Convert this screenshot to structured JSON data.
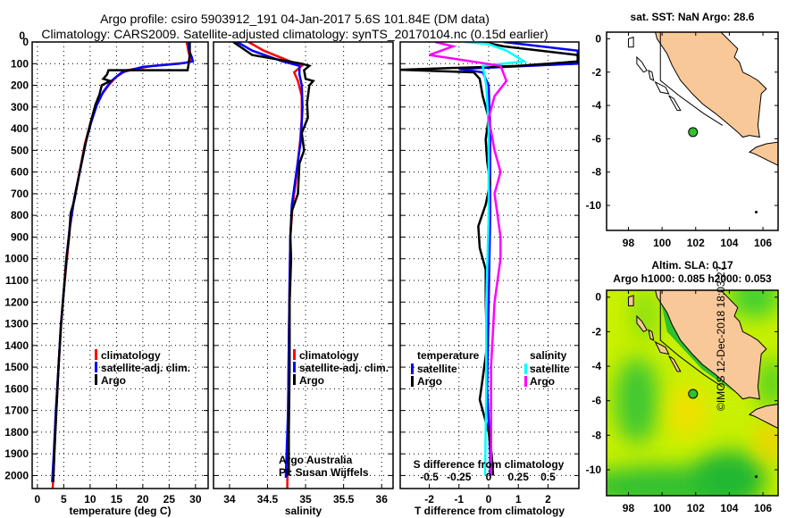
{
  "header": {
    "title_line1": "Argo profile: csiro 5903912_191 04-Jan-2017 5.6S 101.84E (DM data)",
    "title_line2": "Climatology: CARS2009. Satellite-adjusted climatology: synTS_20170104.nc (0.15d earlier)"
  },
  "colors": {
    "climatology": "#ff0000",
    "satellite": "#0000ff",
    "argo": "#000000",
    "sal_satellite": "#00ffff",
    "sal_argo": "#ff00ff",
    "land": "#f8c898"
  },
  "chart_data": [
    {
      "type": "line",
      "name": "temperature-profile",
      "xlabel": "temperature (deg C)",
      "ylabel": "",
      "xlim": [
        -1,
        32.4
      ],
      "ylim": [
        2060,
        0
      ],
      "xticks": [
        0,
        5,
        10,
        15,
        20,
        25,
        30
      ],
      "yticks": [
        0,
        100,
        200,
        300,
        400,
        500,
        600,
        700,
        800,
        900,
        1000,
        1100,
        1200,
        1300,
        1400,
        1500,
        1600,
        1700,
        1800,
        1900,
        2000
      ],
      "legend": [
        "climatology",
        "satellite-adj. clim.",
        "Argo"
      ],
      "legend_placement": "lower-right",
      "series": [
        {
          "name": "climatology",
          "color": "#ff0000",
          "points": [
            [
              28.3,
              0
            ],
            [
              28.5,
              20
            ],
            [
              28.7,
              50
            ],
            [
              29.1,
              80
            ],
            [
              28.5,
              95
            ],
            [
              22,
              110
            ],
            [
              17,
              130
            ],
            [
              15,
              160
            ],
            [
              13.5,
              200
            ],
            [
              12,
              250
            ],
            [
              11,
              300
            ],
            [
              10,
              380
            ],
            [
              9,
              470
            ],
            [
              8,
              600
            ],
            [
              7,
              720
            ],
            [
              6.2,
              850
            ],
            [
              5.6,
              1000
            ],
            [
              5,
              1150
            ],
            [
              4.5,
              1300
            ],
            [
              4,
              1500
            ],
            [
              3.6,
              1700
            ],
            [
              3.2,
              1900
            ],
            [
              2.9,
              2060
            ]
          ]
        },
        {
          "name": "satellite-adj. clim.",
          "color": "#0000ff",
          "points": [
            [
              28.6,
              0
            ],
            [
              28.8,
              40
            ],
            [
              29.3,
              70
            ],
            [
              29.5,
              90
            ],
            [
              27,
              100
            ],
            [
              20,
              115
            ],
            [
              16,
              140
            ],
            [
              14,
              180
            ],
            [
              12.5,
              230
            ],
            [
              11.3,
              290
            ],
            [
              10.2,
              370
            ],
            [
              9.2,
              460
            ],
            [
              8.2,
              580
            ],
            [
              7,
              720
            ],
            [
              6.1,
              860
            ],
            [
              5.5,
              1000
            ],
            [
              5,
              1150
            ],
            [
              4.4,
              1320
            ],
            [
              4,
              1500
            ],
            [
              3.5,
              1700
            ],
            [
              3.1,
              1900
            ],
            [
              2.8,
              2030
            ]
          ]
        },
        {
          "name": "Argo",
          "color": "#000000",
          "points": [
            [
              28.9,
              0
            ],
            [
              28.9,
              60
            ],
            [
              28.7,
              100
            ],
            [
              28.5,
              130
            ],
            [
              13.5,
              130
            ],
            [
              13.2,
              150
            ],
            [
              12.5,
              170
            ],
            [
              13.8,
              180
            ],
            [
              12.2,
              200
            ],
            [
              11.8,
              240
            ],
            [
              11,
              290
            ],
            [
              10.1,
              370
            ],
            [
              9.1,
              470
            ],
            [
              8,
              600
            ],
            [
              7,
              730
            ],
            [
              6.3,
              790
            ],
            [
              6,
              900
            ],
            [
              5.5,
              1000
            ],
            [
              5,
              1150
            ],
            [
              4.5,
              1300
            ],
            [
              4,
              1500
            ],
            [
              3.6,
              1700
            ],
            [
              3.2,
              1900
            ],
            [
              3,
              2030
            ]
          ]
        }
      ]
    },
    {
      "type": "line",
      "name": "salinity-profile",
      "xlabel": "salinity",
      "ylabel": "",
      "xlim": [
        33.79,
        36.15
      ],
      "ylim": [
        2060,
        0
      ],
      "xticks": [
        34,
        34.5,
        35,
        35.5,
        36
      ],
      "legend": [
        "climatology",
        "satellite-adj. clim.",
        "Argo"
      ],
      "legend_placement": "lower-right",
      "annotation": [
        "Argo Australia",
        "PI: Susan Wijffels"
      ],
      "series": [
        {
          "name": "climatology",
          "color": "#ff0000",
          "points": [
            [
              34.25,
              0
            ],
            [
              34.45,
              40
            ],
            [
              34.8,
              90
            ],
            [
              34.95,
              110
            ],
            [
              34.85,
              140
            ],
            [
              34.9,
              180
            ],
            [
              34.95,
              250
            ],
            [
              34.95,
              350
            ],
            [
              34.93,
              450
            ],
            [
              34.9,
              550
            ],
            [
              34.87,
              650
            ],
            [
              34.83,
              750
            ],
            [
              34.8,
              900
            ],
            [
              34.79,
              1100
            ],
            [
              34.78,
              1400
            ],
            [
              34.77,
              1700
            ],
            [
              34.76,
              2060
            ]
          ]
        },
        {
          "name": "satellite-adj. clim.",
          "color": "#0000ff",
          "points": [
            [
              34.1,
              0
            ],
            [
              34.3,
              40
            ],
            [
              34.7,
              90
            ],
            [
              34.92,
              110
            ],
            [
              34.92,
              150
            ],
            [
              34.95,
              200
            ],
            [
              34.96,
              300
            ],
            [
              34.94,
              450
            ],
            [
              34.9,
              550
            ],
            [
              34.86,
              650
            ],
            [
              34.82,
              750
            ],
            [
              34.8,
              900
            ],
            [
              34.79,
              1100
            ],
            [
              34.78,
              1400
            ],
            [
              34.77,
              1700
            ],
            [
              34.75,
              1900
            ],
            [
              34.74,
              2010
            ]
          ]
        },
        {
          "name": "Argo",
          "color": "#000000",
          "points": [
            [
              34.05,
              0
            ],
            [
              34.3,
              60
            ],
            [
              34.95,
              100
            ],
            [
              35.05,
              110
            ],
            [
              34.98,
              130
            ],
            [
              35.0,
              170
            ],
            [
              35.1,
              180
            ],
            [
              35.05,
              200
            ],
            [
              35.02,
              280
            ],
            [
              35.03,
              350
            ],
            [
              34.95,
              420
            ],
            [
              34.98,
              500
            ],
            [
              34.92,
              560
            ],
            [
              34.9,
              700
            ],
            [
              34.82,
              780
            ],
            [
              34.8,
              900
            ],
            [
              34.81,
              1000
            ],
            [
              34.79,
              1200
            ],
            [
              34.79,
              1500
            ],
            [
              34.78,
              1800
            ],
            [
              34.78,
              2000
            ]
          ]
        }
      ]
    },
    {
      "type": "line",
      "name": "difference-profile",
      "xlabel": "T difference from climatology",
      "x2label": "S difference from climatology",
      "xlim": [
        -2.98,
        3.04
      ],
      "ylim": [
        2060,
        0
      ],
      "xticks": [
        -2,
        -1,
        0,
        1,
        2
      ],
      "x2ticks": [
        -0.5,
        -0.25,
        0,
        0.25,
        0.5
      ],
      "s_scale": 4,
      "legend_temperature": {
        "heading": "temperature",
        "items": [
          "satellite",
          "Argo"
        ]
      },
      "legend_salinity": {
        "heading": "salinity",
        "items": [
          "satellite",
          "Argo"
        ]
      },
      "series": [
        {
          "name": "T satellite",
          "color": "#0000ff",
          "units": "T",
          "points": [
            [
              0.5,
              0
            ],
            [
              3,
              40
            ],
            [
              3,
              100
            ],
            [
              -1,
              125
            ],
            [
              -0.2,
              140
            ],
            [
              0,
              200
            ],
            [
              0.05,
              400
            ],
            [
              0.05,
              800
            ],
            [
              0,
              1200
            ],
            [
              -0.05,
              1600
            ],
            [
              0.05,
              1900
            ],
            [
              0.05,
              2000
            ]
          ]
        },
        {
          "name": "T Argo",
          "color": "#000000",
          "units": "T",
          "points": [
            [
              -0.2,
              0
            ],
            [
              0.5,
              20
            ],
            [
              3,
              60
            ],
            [
              3,
              90
            ],
            [
              1,
              110
            ],
            [
              -3,
              128
            ],
            [
              -0.5,
              140
            ],
            [
              -0.3,
              170
            ],
            [
              -0.2,
              250
            ],
            [
              0,
              350
            ],
            [
              -0.1,
              450
            ],
            [
              -0.05,
              550
            ],
            [
              0.05,
              650
            ],
            [
              -0.1,
              750
            ],
            [
              -0.35,
              850
            ],
            [
              -0.3,
              950
            ],
            [
              -0.1,
              1050
            ],
            [
              -0.1,
              1200
            ],
            [
              -0.05,
              1400
            ],
            [
              -0.2,
              1550
            ],
            [
              -0.3,
              1650
            ],
            [
              0,
              1800
            ],
            [
              0.1,
              1900
            ],
            [
              0.15,
              2000
            ]
          ]
        },
        {
          "name": "S satellite",
          "color": "#00ffff",
          "units": "S",
          "points": [
            [
              -0.2,
              0
            ],
            [
              0,
              10
            ],
            [
              0.15,
              40
            ],
            [
              0.3,
              90
            ],
            [
              -0.05,
              110
            ],
            [
              -0.02,
              200
            ],
            [
              0,
              400
            ],
            [
              0,
              800
            ],
            [
              -0.02,
              1200
            ],
            [
              -0.02,
              1600
            ],
            [
              -0.03,
              2000
            ]
          ]
        },
        {
          "name": "S Argo",
          "color": "#ff00ff",
          "units": "S",
          "points": [
            [
              -0.45,
              0
            ],
            [
              -0.3,
              20
            ],
            [
              -0.5,
              60
            ],
            [
              0.1,
              110
            ],
            [
              0.15,
              180
            ],
            [
              0.05,
              250
            ],
            [
              0,
              350
            ],
            [
              0.05,
              500
            ],
            [
              0.1,
              600
            ],
            [
              0.05,
              700
            ],
            [
              0.1,
              900
            ],
            [
              0.1,
              1000
            ],
            [
              0.05,
              1200
            ],
            [
              0.02,
              1500
            ],
            [
              0.02,
              1800
            ],
            [
              0.02,
              2000
            ]
          ]
        }
      ]
    }
  ],
  "maps": {
    "sst": {
      "title": "sat. SST: NaN Argo: 28.6",
      "xticks": [
        98,
        100,
        102,
        104,
        106
      ],
      "yticks": [
        0,
        -2,
        -4,
        -6,
        -8,
        -10
      ],
      "lonlim": [
        96.7,
        106.9
      ],
      "latlim": [
        -11.5,
        0.4
      ]
    },
    "sla": {
      "title_line1": "Altim. SLA: 0.17",
      "title_line2": "Argo h1000: 0.085 h2000: 0.053",
      "xticks": [
        98,
        100,
        102,
        104,
        106
      ],
      "yticks": [
        0,
        -2,
        -4,
        -6,
        -8,
        -10
      ],
      "lonlim": [
        96.7,
        106.9
      ],
      "latlim": [
        -11.5,
        0.4
      ]
    },
    "argo_position": {
      "lon": 101.84,
      "lat": -5.6
    }
  },
  "credit": "©IMOS 12-Dec-2018 18:03:27"
}
